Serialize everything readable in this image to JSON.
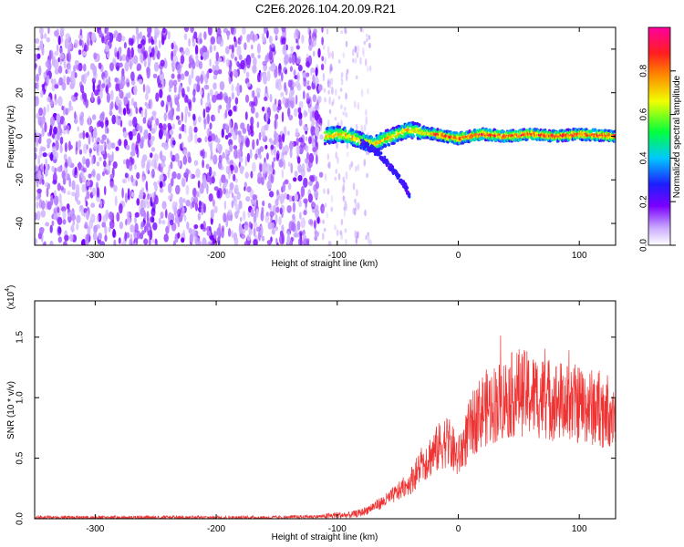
{
  "title": "C2E6.2026.104.20.09.R21",
  "chart_data": [
    {
      "type": "heatmap",
      "xlabel": "Height of straight line (km)",
      "ylabel": "Frequency (Hz)",
      "xlim": [
        -350,
        130
      ],
      "ylim": [
        -50,
        50
      ],
      "xticks": [
        -300,
        -200,
        -100,
        0,
        100
      ],
      "yticks": [
        -40,
        -20,
        0,
        20,
        40
      ],
      "colorbar": {
        "label": "Normalized spectral amplitude",
        "range": [
          0.0,
          1.0
        ],
        "ticks": [
          "0.0",
          "0.2",
          "0.4",
          "0.6",
          "0.8"
        ],
        "colors": [
          "#ffffff",
          "#8a2be2",
          "#1e1eff",
          "#00c8ff",
          "#00ff3c",
          "#f0ff00",
          "#ff8a00",
          "#ff1e1e",
          "#ff00a0"
        ]
      },
      "regions": [
        {
          "x_from": -350,
          "x_to": -112,
          "freq_from": -50,
          "freq_to": 50,
          "amplitude": 0.15
        },
        {
          "x_from": -112,
          "x_to": 130,
          "freq_center": 0,
          "amplitude_peak": 0.9
        }
      ],
      "ridge": {
        "x": [
          -110,
          -100,
          -90,
          -80,
          -70,
          -60,
          -50,
          -40,
          -30,
          -20,
          -10,
          0,
          20,
          40,
          60,
          80,
          100,
          130
        ],
        "freq": [
          0,
          1,
          0,
          -2,
          -4,
          -1,
          1,
          3,
          2,
          1,
          0,
          -1,
          1,
          0,
          1,
          0,
          1,
          0
        ]
      },
      "branch": {
        "x": [
          -80,
          -65,
          -55,
          -45,
          -40
        ],
        "freq": [
          -3,
          -8,
          -15,
          -22,
          -27
        ]
      }
    },
    {
      "type": "line",
      "xlabel": "Height of straight line (km)",
      "ylabel": "SNR (10 * v/v)",
      "yscale_label": "(x10",
      "yscale_exp": "4",
      "xlim": [
        -350,
        130
      ],
      "ylim": [
        0,
        1.8
      ],
      "xticks": [
        -300,
        -200,
        -100,
        0,
        100
      ],
      "yticks": [
        0.0,
        0.5,
        1.0,
        1.5
      ],
      "color": "#ee3333",
      "series": [
        {
          "x": [
            -350,
            -300,
            -250,
            -200,
            -150,
            -110,
            -100,
            -90,
            -80,
            -70,
            -60,
            -50,
            -40,
            -30,
            -20,
            -10,
            0,
            10,
            20,
            30,
            40,
            50,
            60,
            70,
            80,
            90,
            100,
            110,
            120,
            130
          ],
          "y": [
            0.01,
            0.01,
            0.01,
            0.01,
            0.01,
            0.02,
            0.03,
            0.03,
            0.05,
            0.1,
            0.15,
            0.22,
            0.3,
            0.45,
            0.55,
            0.65,
            0.5,
            0.75,
            0.9,
            0.95,
            1.0,
            1.05,
            1.02,
            1.0,
            0.98,
            0.95,
            0.95,
            0.92,
            0.9,
            0.9
          ]
        }
      ]
    }
  ]
}
